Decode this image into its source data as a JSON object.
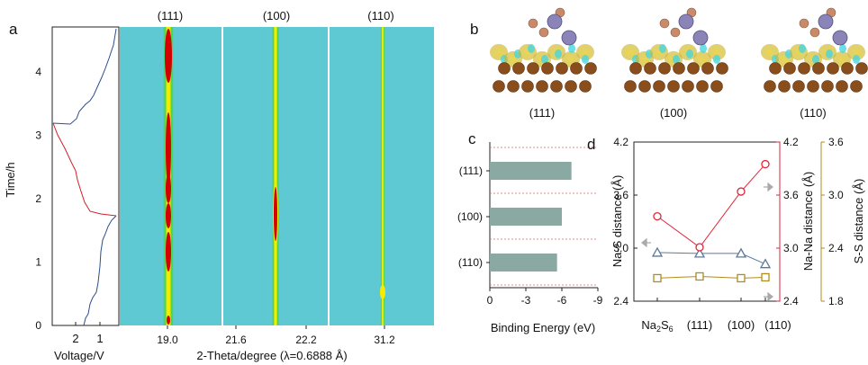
{
  "panel_labels": {
    "a": "a",
    "b": "b",
    "c": "c",
    "d": "d"
  },
  "panel_a": {
    "ylabel": "Time/h",
    "yticks": [
      "0",
      "1",
      "2",
      "3",
      "4"
    ],
    "voltage_ticks": [
      "2",
      "1"
    ],
    "voltage_label": "Voltage/V",
    "facets": [
      "(111)",
      "(100)",
      "(110)"
    ],
    "theta_ticks": [
      "19.0",
      "21.6",
      "22.2",
      "31.2"
    ],
    "xlabel": "2-Theta/degree  (λ=0.6888  Å)",
    "colors": {
      "background": "#5ec9d3",
      "discharge": "#d41e2a",
      "charge": "#2c4f8c",
      "peak_core": "#d40000",
      "peak_halo": "#f5ec00",
      "peak_edge": "#46d246"
    }
  },
  "panel_b": {
    "labels": [
      "(111)",
      "(100)",
      "(110)"
    ],
    "icons": [
      "charge-density-111-icon",
      "charge-density-100-icon",
      "charge-density-110-icon"
    ]
  },
  "chart_data": [
    {
      "type": "bar",
      "orientation": "horizontal",
      "panel": "c",
      "categories": [
        "(111)",
        "(100)",
        "(110)"
      ],
      "values": [
        -6.8,
        -6.0,
        -5.6
      ],
      "xlabel": "Binding Energy (eV)",
      "xticks": [
        "0",
        "-3",
        "-6",
        "-9"
      ],
      "xlim": [
        0,
        -9
      ],
      "color": "#8aa9a3"
    },
    {
      "type": "line",
      "panel": "d",
      "categories": [
        "Na2S6",
        "(111)",
        "(100)",
        "(110)"
      ],
      "category_labels": {
        "base": "Na",
        "sub1": "2",
        "mid": "S",
        "sub2": "6"
      },
      "series": [
        {
          "name": "Na-S distance (Å)",
          "axis": "left",
          "color": "#5a7a98",
          "marker": "triangle",
          "values": [
            2.95,
            2.94,
            2.94,
            2.82
          ]
        },
        {
          "name": "Na-Na distance (Å)",
          "axis": "right1",
          "color": "#e0263a",
          "marker": "circle",
          "values": [
            3.36,
            3.01,
            3.64,
            3.95
          ]
        },
        {
          "name": "S-S distance (Å)",
          "axis": "right2",
          "color": "#b08c1c",
          "marker": "square",
          "values": [
            2.06,
            2.08,
            2.06,
            2.07
          ]
        }
      ],
      "axes": {
        "left": {
          "label": "Na-S distance (Å)",
          "ylim": [
            2.4,
            4.2
          ],
          "ticks": [
            "2.4",
            "3.0",
            "3.6",
            "4.2"
          ]
        },
        "right1": {
          "label": "Na-Na distance (Å)",
          "ylim": [
            2.4,
            4.2
          ],
          "ticks": [
            "2.4",
            "3.0",
            "3.6",
            "4.2"
          ]
        },
        "right2": {
          "label": "S-S distance (Å)",
          "ylim": [
            1.8,
            3.6
          ],
          "ticks": [
            "1.8",
            "2.4",
            "3.0",
            "3.6"
          ]
        }
      }
    }
  ]
}
